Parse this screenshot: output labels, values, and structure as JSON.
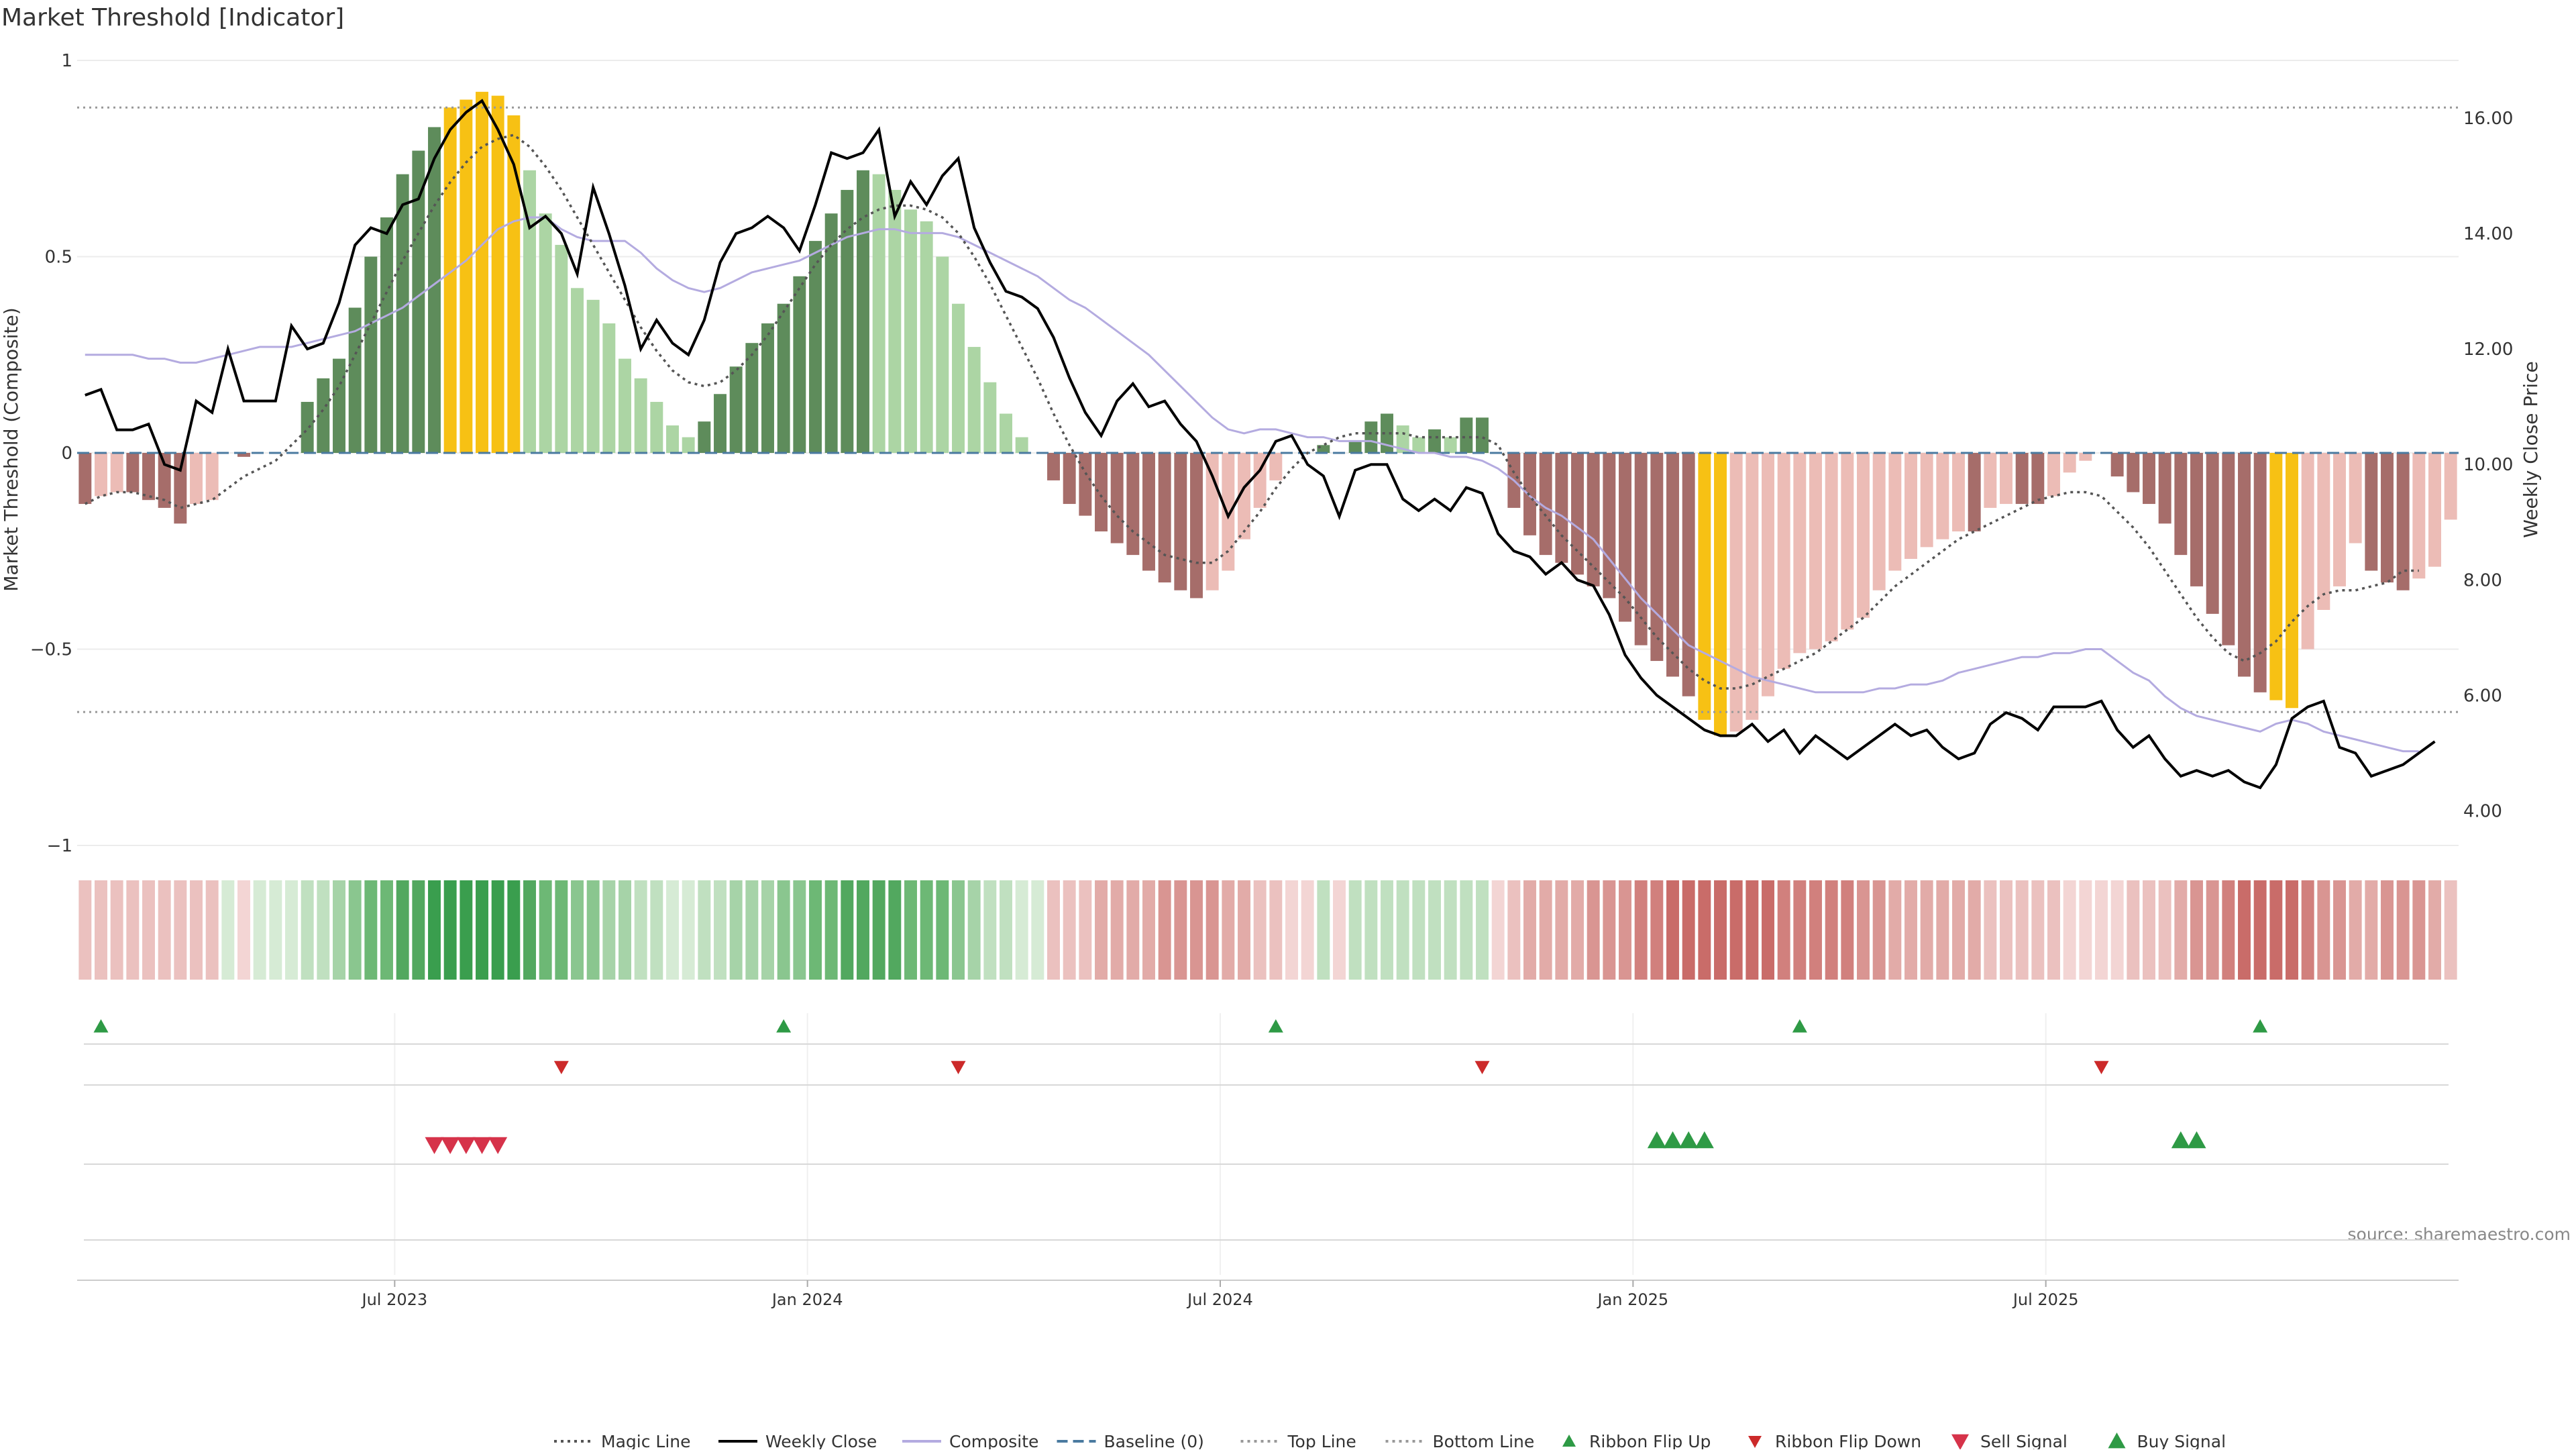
{
  "chart_data": {
    "type": "bar",
    "title": "Market Threshold [Indicator]",
    "ylabel_left": "Market Threshold (Composite)",
    "ylabel_right": "Weekly Close Price",
    "source": "source: sharemaestro.com",
    "ylim_left": [
      -1,
      1
    ],
    "ylim_right": [
      3.4,
      17.0
    ],
    "yticks_left": [
      1,
      0.5,
      0,
      -0.5,
      -1
    ],
    "yticks_left_labels": [
      "1",
      "0.5",
      "0",
      "−0.5",
      "−1"
    ],
    "yticks_right": [
      16,
      14,
      12,
      10,
      8,
      6,
      4
    ],
    "yticks_right_labels": [
      "16.00",
      "14.00",
      "12.00",
      "10.00",
      "8.00",
      "6.00",
      "4.00"
    ],
    "top_line": 0.88,
    "bottom_line": -0.66,
    "baseline": 0,
    "x_ticks": [
      {
        "index": 20,
        "label": "Jul 2023"
      },
      {
        "index": 46,
        "label": "Jan 2024"
      },
      {
        "index": 72,
        "label": "Jul 2024"
      },
      {
        "index": 98,
        "label": "Jan 2025"
      },
      {
        "index": 124,
        "label": "Jul 2025"
      }
    ],
    "composite_bars": [
      -0.13,
      -0.11,
      -0.1,
      -0.1,
      -0.12,
      -0.14,
      -0.18,
      -0.13,
      -0.12,
      0,
      -0.01,
      0,
      0,
      0,
      0.13,
      0.19,
      0.24,
      0.37,
      0.5,
      0.6,
      0.71,
      0.77,
      0.83,
      0.88,
      0.9,
      0.92,
      0.91,
      0.86,
      0.72,
      0.61,
      0.53,
      0.42,
      0.39,
      0.33,
      0.24,
      0.19,
      0.13,
      0.07,
      0.04,
      0.08,
      0.15,
      0.22,
      0.28,
      0.33,
      0.38,
      0.45,
      0.54,
      0.61,
      0.67,
      0.72,
      0.71,
      0.67,
      0.62,
      0.59,
      0.5,
      0.38,
      0.27,
      0.18,
      0.1,
      0.04,
      0,
      -0.07,
      -0.13,
      -0.16,
      -0.2,
      -0.23,
      -0.26,
      -0.3,
      -0.33,
      -0.35,
      -0.37,
      -0.35,
      -0.3,
      -0.22,
      -0.14,
      -0.07,
      0,
      0,
      0.02,
      0,
      0.03,
      0.08,
      0.1,
      0.07,
      0.04,
      0.06,
      0.04,
      0.09,
      0.09,
      0,
      -0.14,
      -0.21,
      -0.26,
      -0.28,
      -0.31,
      -0.34,
      -0.37,
      -0.43,
      -0.49,
      -0.53,
      -0.57,
      -0.62,
      -0.68,
      -0.72,
      -0.71,
      -0.68,
      -0.62,
      -0.55,
      -0.51,
      -0.5,
      -0.48,
      -0.45,
      -0.42,
      -0.35,
      -0.3,
      -0.27,
      -0.24,
      -0.22,
      -0.2,
      -0.2,
      -0.14,
      -0.13,
      -0.13,
      -0.13,
      -0.11,
      -0.05,
      -0.02,
      0,
      -0.06,
      -0.1,
      -0.13,
      -0.18,
      -0.26,
      -0.34,
      -0.41,
      -0.49,
      -0.57,
      -0.61,
      -0.63,
      -0.65,
      -0.5,
      -0.4,
      -0.34,
      -0.23,
      -0.3,
      -0.33,
      -0.35,
      -0.32,
      -0.29,
      -0.17
    ],
    "weekly_close": [
      11.2,
      11.3,
      10.6,
      10.6,
      10.7,
      10.0,
      9.9,
      11.1,
      10.9,
      12.0,
      11.1,
      11.1,
      11.1,
      12.4,
      12.0,
      12.1,
      12.8,
      13.8,
      14.1,
      14.0,
      14.5,
      14.6,
      15.3,
      15.8,
      16.1,
      16.3,
      15.8,
      15.2,
      14.1,
      14.3,
      14.0,
      13.3,
      14.8,
      14.0,
      13.1,
      12.0,
      12.5,
      12.1,
      11.9,
      12.5,
      13.5,
      14.0,
      14.1,
      14.3,
      14.1,
      13.7,
      14.5,
      15.4,
      15.3,
      15.4,
      15.8,
      14.3,
      14.9,
      14.5,
      15.0,
      15.3,
      14.1,
      13.5,
      13.0,
      12.9,
      12.7,
      12.2,
      11.5,
      10.9,
      10.5,
      11.1,
      11.4,
      11.0,
      11.1,
      10.7,
      10.4,
      9.8,
      9.1,
      9.6,
      9.9,
      10.4,
      10.5,
      10.0,
      9.8,
      9.1,
      9.9,
      10.0,
      10.0,
      9.4,
      9.2,
      9.4,
      9.2,
      9.6,
      9.5,
      8.8,
      8.5,
      8.4,
      8.1,
      8.3,
      8.0,
      7.9,
      7.4,
      6.7,
      6.3,
      6.0,
      5.8,
      5.6,
      5.4,
      5.3,
      5.3,
      5.5,
      5.2,
      5.4,
      5.0,
      5.3,
      5.1,
      4.9,
      5.1,
      5.3,
      5.5,
      5.3,
      5.4,
      5.1,
      4.9,
      5.0,
      5.5,
      5.7,
      5.6,
      5.4,
      5.8,
      5.8,
      5.8,
      5.9,
      5.4,
      5.1,
      5.3,
      4.9,
      4.6,
      4.7,
      4.6,
      4.7,
      4.5,
      4.4,
      4.8,
      5.6,
      5.8,
      5.9,
      5.1,
      5.0,
      4.6,
      4.7,
      4.8,
      5.0,
      5.2
    ],
    "magic_line": [
      -0.13,
      -0.11,
      -0.1,
      -0.1,
      -0.11,
      -0.12,
      -0.14,
      -0.13,
      -0.12,
      -0.09,
      -0.06,
      -0.04,
      -0.02,
      0.02,
      0.06,
      0.11,
      0.17,
      0.25,
      0.33,
      0.41,
      0.49,
      0.56,
      0.63,
      0.69,
      0.74,
      0.78,
      0.8,
      0.81,
      0.78,
      0.73,
      0.67,
      0.6,
      0.53,
      0.46,
      0.39,
      0.32,
      0.26,
      0.21,
      0.18,
      0.17,
      0.18,
      0.21,
      0.25,
      0.3,
      0.36,
      0.42,
      0.48,
      0.53,
      0.57,
      0.6,
      0.62,
      0.63,
      0.63,
      0.62,
      0.6,
      0.56,
      0.5,
      0.43,
      0.35,
      0.27,
      0.19,
      0.1,
      0.02,
      -0.05,
      -0.11,
      -0.16,
      -0.2,
      -0.23,
      -0.26,
      -0.27,
      -0.28,
      -0.28,
      -0.25,
      -0.2,
      -0.15,
      -0.09,
      -0.04,
      0,
      0.02,
      0.04,
      0.05,
      0.05,
      0.05,
      0.05,
      0.04,
      0.04,
      0.04,
      0.04,
      0.04,
      0.02,
      -0.05,
      -0.11,
      -0.16,
      -0.21,
      -0.25,
      -0.29,
      -0.33,
      -0.37,
      -0.42,
      -0.47,
      -0.51,
      -0.55,
      -0.58,
      -0.6,
      -0.6,
      -0.59,
      -0.57,
      -0.55,
      -0.53,
      -0.51,
      -0.48,
      -0.45,
      -0.42,
      -0.38,
      -0.34,
      -0.31,
      -0.28,
      -0.25,
      -0.22,
      -0.2,
      -0.18,
      -0.16,
      -0.14,
      -0.12,
      -0.11,
      -0.1,
      -0.1,
      -0.11,
      -0.15,
      -0.19,
      -0.24,
      -0.3,
      -0.36,
      -0.42,
      -0.47,
      -0.51,
      -0.53,
      -0.51,
      -0.48,
      -0.43,
      -0.39,
      -0.36,
      -0.35,
      -0.35,
      -0.34,
      -0.33,
      -0.3,
      -0.3
    ],
    "composite_line": [
      0.25,
      0.25,
      0.25,
      0.25,
      0.24,
      0.24,
      0.23,
      0.23,
      0.24,
      0.25,
      0.26,
      0.27,
      0.27,
      0.27,
      0.28,
      0.29,
      0.3,
      0.31,
      0.33,
      0.35,
      0.37,
      0.4,
      0.43,
      0.46,
      0.49,
      0.53,
      0.57,
      0.59,
      0.6,
      0.6,
      0.57,
      0.55,
      0.54,
      0.54,
      0.54,
      0.51,
      0.47,
      0.44,
      0.42,
      0.41,
      0.42,
      0.44,
      0.46,
      0.47,
      0.48,
      0.49,
      0.51,
      0.53,
      0.55,
      0.56,
      0.57,
      0.57,
      0.56,
      0.56,
      0.56,
      0.55,
      0.53,
      0.51,
      0.49,
      0.47,
      0.45,
      0.42,
      0.39,
      0.37,
      0.34,
      0.31,
      0.28,
      0.25,
      0.21,
      0.17,
      0.13,
      0.09,
      0.06,
      0.05,
      0.06,
      0.06,
      0.05,
      0.04,
      0.04,
      0.03,
      0.03,
      0.03,
      0.02,
      0.01,
      0,
      0,
      -0.01,
      -0.01,
      -0.02,
      -0.04,
      -0.07,
      -0.11,
      -0.14,
      -0.16,
      -0.19,
      -0.22,
      -0.27,
      -0.32,
      -0.37,
      -0.41,
      -0.45,
      -0.49,
      -0.51,
      -0.53,
      -0.55,
      -0.57,
      -0.58,
      -0.59,
      -0.6,
      -0.61,
      -0.61,
      -0.61,
      -0.61,
      -0.6,
      -0.6,
      -0.59,
      -0.59,
      -0.58,
      -0.56,
      -0.55,
      -0.54,
      -0.53,
      -0.52,
      -0.52,
      -0.51,
      -0.51,
      -0.5,
      -0.5,
      -0.53,
      -0.56,
      -0.58,
      -0.62,
      -0.65,
      -0.67,
      -0.68,
      -0.69,
      -0.7,
      -0.71,
      -0.69,
      -0.68,
      -0.69,
      -0.71,
      -0.72,
      -0.73,
      -0.74,
      -0.75,
      -0.76,
      -0.76
    ],
    "ribbon_flip_up": [
      1,
      44,
      75,
      108,
      137
    ],
    "ribbon_flip_down": [
      30,
      55,
      88,
      127
    ],
    "sell_signals": [
      22,
      23,
      24,
      25,
      26
    ],
    "buy_signals": [
      99,
      100,
      101,
      102,
      132,
      133
    ],
    "legend": [
      {
        "label": "Magic Line",
        "kind": "dotted-line",
        "color": "#555555"
      },
      {
        "label": "Weekly Close",
        "kind": "solid-line",
        "color": "#000000"
      },
      {
        "label": "Composite",
        "kind": "solid-line",
        "color": "#b4abe0"
      },
      {
        "label": "Baseline (0)",
        "kind": "dashed-line",
        "color": "#4a7aa0"
      },
      {
        "label": "Top Line",
        "kind": "dotted-line",
        "color": "#999999"
      },
      {
        "label": "Bottom Line",
        "kind": "dotted-line",
        "color": "#999999"
      },
      {
        "label": "Ribbon Flip Up",
        "kind": "triangle-up-small",
        "color": "#2e9a45"
      },
      {
        "label": "Ribbon Flip Down",
        "kind": "triangle-down-small",
        "color": "#cc2a2a"
      },
      {
        "label": "Sell Signal",
        "kind": "triangle-down",
        "color": "#d6334a"
      },
      {
        "label": "Buy Signal",
        "kind": "triangle-up",
        "color": "#2e9a45"
      }
    ],
    "colors": {
      "bull_strong": "#5e8c5b",
      "bull_weak": "#acd5a4",
      "bear_strong": "#a66d6a",
      "bear_weak": "#ecbcb6",
      "extreme": "#f7c114",
      "weekly_close": "#000000",
      "composite_line": "#b4abe0",
      "magic_line": "#555555",
      "baseline": "#4a7aa0",
      "threshold_lines": "#999999",
      "ribbon_green": "#3a9e4e",
      "ribbon_red": "#c9504e"
    }
  }
}
